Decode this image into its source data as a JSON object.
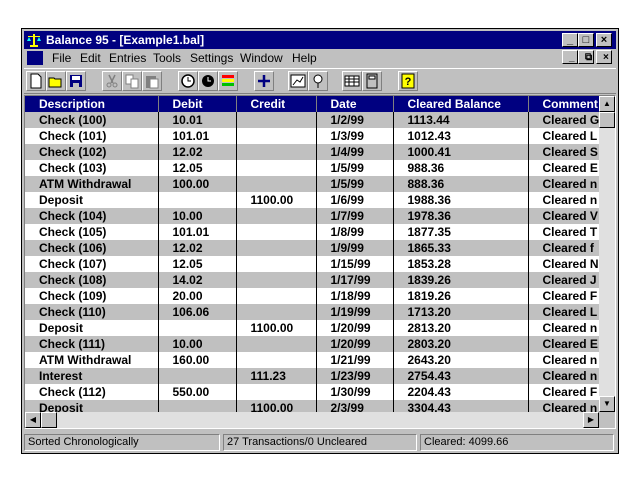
{
  "window": {
    "title": "Balance 95 - [Example1.bal]"
  },
  "menu": {
    "items": [
      {
        "label": "File"
      },
      {
        "label": "Edit"
      },
      {
        "label": "Entries"
      },
      {
        "label": "Tools"
      },
      {
        "label": "Settings"
      },
      {
        "label": "Window"
      },
      {
        "label": "Help"
      }
    ]
  },
  "toolbar": {
    "buttons": [
      "new-icon",
      "open-icon",
      "save-icon",
      "cut-icon",
      "copy-icon",
      "paste-icon",
      "clock-icon",
      "clock-filled-icon",
      "color-bars-icon",
      "add-icon",
      "chart-icon",
      "balloon-icon",
      "grid-icon",
      "calculator-icon",
      "help-icon"
    ]
  },
  "grid": {
    "columns": [
      "Description",
      "Debit",
      "Credit",
      "Date",
      "Cleared Balance",
      "Comment"
    ],
    "rows": [
      [
        "Check (100)",
        "10.01",
        "",
        "1/2/99",
        "1113.44",
        "Cleared G"
      ],
      [
        "Check (101)",
        "101.01",
        "",
        "1/3/99",
        "1012.43",
        "Cleared L"
      ],
      [
        "Check (102)",
        "12.02",
        "",
        "1/4/99",
        "1000.41",
        "Cleared S"
      ],
      [
        "Check (103)",
        "12.05",
        "",
        "1/5/99",
        "988.36",
        "Cleared E"
      ],
      [
        "ATM Withdrawal",
        "100.00",
        "",
        "1/5/99",
        "888.36",
        "Cleared n"
      ],
      [
        "Deposit",
        "",
        "1100.00",
        "1/6/99",
        "1988.36",
        "Cleared n"
      ],
      [
        "Check (104)",
        "10.00",
        "",
        "1/7/99",
        "1978.36",
        "Cleared V"
      ],
      [
        "Check (105)",
        "101.01",
        "",
        "1/8/99",
        "1877.35",
        "Cleared T"
      ],
      [
        "Check (106)",
        "12.02",
        "",
        "1/9/99",
        "1865.33",
        "Cleared f"
      ],
      [
        "Check (107)",
        "12.05",
        "",
        "1/15/99",
        "1853.28",
        "Cleared N"
      ],
      [
        "Check (108)",
        "14.02",
        "",
        "1/17/99",
        "1839.26",
        "Cleared J"
      ],
      [
        "Check (109)",
        "20.00",
        "",
        "1/18/99",
        "1819.26",
        "Cleared F"
      ],
      [
        "Check (110)",
        "106.06",
        "",
        "1/19/99",
        "1713.20",
        "Cleared L"
      ],
      [
        "Deposit",
        "",
        "1100.00",
        "1/20/99",
        "2813.20",
        "Cleared n"
      ],
      [
        "Check (111)",
        "10.00",
        "",
        "1/20/99",
        "2803.20",
        "Cleared E"
      ],
      [
        "ATM Withdrawal",
        "160.00",
        "",
        "1/21/99",
        "2643.20",
        "Cleared n"
      ],
      [
        "Interest",
        "",
        "111.23",
        "1/23/99",
        "2754.43",
        "Cleared n"
      ],
      [
        "Check (112)",
        "550.00",
        "",
        "1/30/99",
        "2204.43",
        "Cleared F"
      ],
      [
        "Deposit",
        "",
        "1100.00",
        "2/3/99",
        "3304.43",
        "Cleared n"
      ]
    ]
  },
  "status": {
    "sort": "Sorted Chronologically",
    "count": "27 Transactions/0 Uncleared",
    "cleared": "Cleared: 4099.66"
  }
}
